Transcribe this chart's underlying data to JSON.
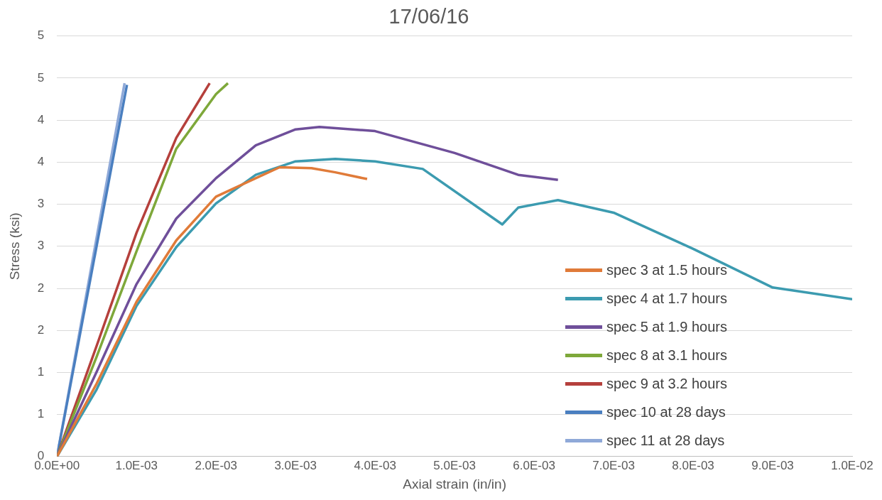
{
  "chart_data": {
    "type": "line",
    "title": "17/06/16",
    "xlabel": "Axial strain (in/in)",
    "ylabel": "Stress (ksi)",
    "xlim": [
      0,
      0.01
    ],
    "ylim": [
      0,
      5
    ],
    "xticks": [
      {
        "value": 0,
        "label": "0.0E+00"
      },
      {
        "value": 0.001,
        "label": "1.0E-03"
      },
      {
        "value": 0.002,
        "label": "2.0E-03"
      },
      {
        "value": 0.003,
        "label": "3.0E-03"
      },
      {
        "value": 0.004,
        "label": "4.0E-03"
      },
      {
        "value": 0.005,
        "label": "5.0E-03"
      },
      {
        "value": 0.006,
        "label": "6.0E-03"
      },
      {
        "value": 0.007,
        "label": "7.0E-03"
      },
      {
        "value": 0.008,
        "label": "8.0E-03"
      },
      {
        "value": 0.009,
        "label": "9.0E-03"
      },
      {
        "value": 0.01,
        "label": "1.0E-02"
      }
    ],
    "yticks": [
      0,
      {
        "value": 0.5,
        "label": "1"
      },
      1,
      {
        "value": 1.5,
        "label": "2"
      },
      2,
      {
        "value": 2.5,
        "label": "3"
      },
      3,
      {
        "value": 3.5,
        "label": "4"
      },
      4,
      {
        "value": 4.5,
        "label": "5"
      },
      5
    ],
    "grid": "y",
    "legend": "right",
    "marker": "none",
    "line_style": "solid",
    "series": [
      {
        "name": "spec 3 at 1.5 hours",
        "color": "#e07b39",
        "x": [
          0,
          0.0005,
          0.001,
          0.0015,
          0.002,
          0.0025,
          0.0028,
          0.0032,
          0.0035,
          0.0039
        ],
        "values": [
          0,
          0.87,
          1.84,
          2.57,
          3.09,
          3.31,
          3.44,
          3.43,
          3.38,
          3.3
        ]
      },
      {
        "name": "spec 4 at 1.7 hours",
        "color": "#3c9bb0",
        "x": [
          0,
          0.0005,
          0.001,
          0.0015,
          0.002,
          0.0025,
          0.003,
          0.0035,
          0.004,
          0.0046,
          0.0056,
          0.0058,
          0.0063,
          0.007,
          0.008,
          0.009,
          0.01
        ],
        "values": [
          0,
          0.8,
          1.79,
          2.49,
          3.01,
          3.35,
          3.51,
          3.54,
          3.51,
          3.42,
          2.76,
          2.96,
          3.05,
          2.9,
          2.47,
          2.01,
          1.87
        ]
      },
      {
        "name": "spec 5 at 1.9 hours",
        "color": "#6f4f9a",
        "x": [
          0,
          0.0005,
          0.001,
          0.0015,
          0.002,
          0.0025,
          0.003,
          0.0033,
          0.004,
          0.005,
          0.0058,
          0.0063
        ],
        "values": [
          0,
          1.01,
          2.05,
          2.83,
          3.31,
          3.7,
          3.89,
          3.92,
          3.87,
          3.61,
          3.35,
          3.29
        ]
      },
      {
        "name": "spec 8 at 3.1 hours",
        "color": "#7ea83a",
        "x": [
          0,
          0.0005,
          0.001,
          0.0015,
          0.002,
          0.00215
        ],
        "values": [
          0,
          1.19,
          2.44,
          3.66,
          4.31,
          4.44
        ]
      },
      {
        "name": "spec 9 at 3.2 hours",
        "color": "#b5403c",
        "x": [
          0,
          0.0005,
          0.001,
          0.0015,
          0.00192
        ],
        "values": [
          0,
          1.32,
          2.66,
          3.79,
          4.44
        ]
      },
      {
        "name": "spec 10 at 28 days",
        "color": "#4a7fc0",
        "x": [
          0,
          0.00088
        ],
        "values": [
          0,
          4.42
        ]
      },
      {
        "name": "spec 11 at 28 days",
        "color": "#8fa9d8",
        "x": [
          0,
          0.00085
        ],
        "values": [
          0,
          4.44
        ]
      }
    ]
  }
}
